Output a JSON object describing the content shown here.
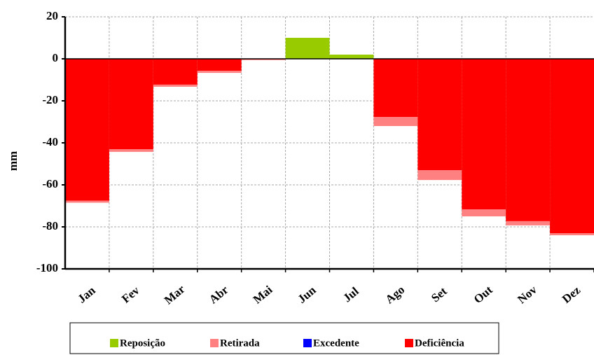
{
  "chart_data": {
    "type": "bar",
    "stacked": true,
    "y_label": "mm",
    "categories": [
      "Jan",
      "Fev",
      "Mar",
      "Abr",
      "Mai",
      "Jun",
      "Jul",
      "Ago",
      "Set",
      "Out",
      "Nov",
      "Dez"
    ],
    "series": [
      {
        "name": "Reposição",
        "color": "#99cc00",
        "values": [
          0,
          0,
          0,
          0,
          0,
          10,
          2,
          0,
          0,
          0,
          0,
          0
        ]
      },
      {
        "name": "Retirada",
        "color": "#ff8080",
        "values": [
          -1,
          -1.3,
          -1,
          -1,
          -0.3,
          0,
          0,
          -4.3,
          -4.7,
          -3.3,
          -2,
          -1
        ]
      },
      {
        "name": "Excedente",
        "color": "#0000ff",
        "values": [
          0,
          0,
          0,
          0,
          0,
          0,
          0,
          0,
          0,
          0,
          0,
          0
        ]
      },
      {
        "name": "Deficiência",
        "color": "#ff0000",
        "values": [
          -67.5,
          -43,
          -12.3,
          -5.7,
          -0.3,
          0,
          0,
          -27.7,
          -53,
          -71.7,
          -77.3,
          -83
        ]
      }
    ],
    "ylim": [
      -100,
      20
    ],
    "yticks": [
      -100,
      -80,
      -60,
      -40,
      -20,
      0,
      20
    ],
    "grid": true
  }
}
